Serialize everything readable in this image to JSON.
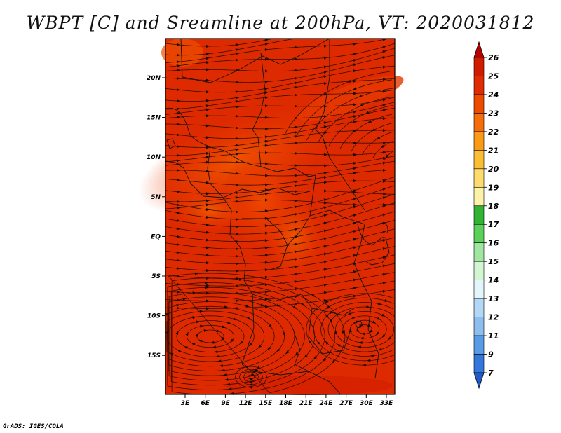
{
  "title": "WBPT [C] and Sreamline at 200hPa, VT: 2020031812",
  "credit": "GrADS: IGES/COLA",
  "map": {
    "lon_labels": [
      "3E",
      "6E",
      "9E",
      "12E",
      "15E",
      "18E",
      "21E",
      "24E",
      "27E",
      "30E",
      "33E"
    ],
    "lat_labels": [
      "20N",
      "15N",
      "10N",
      "5N",
      "EQ",
      "5S",
      "10S",
      "15S"
    ]
  },
  "legend": {
    "labels": [
      "26",
      "25",
      "24",
      "23",
      "22",
      "21",
      "20",
      "19",
      "18",
      "17",
      "16",
      "15",
      "14",
      "13",
      "12",
      "11",
      "9",
      "7"
    ],
    "colors": [
      "#b80000",
      "#d21c00",
      "#e02c00",
      "#ee4a00",
      "#f56e0a",
      "#fa9a16",
      "#fbbd32",
      "#fddb6c",
      "#fdf3a8",
      "#32b432",
      "#5ad25a",
      "#a0e6a0",
      "#d2f5d2",
      "#e4f5fb",
      "#b4d7f5",
      "#8cbef0",
      "#5a9be6",
      "#3278dc",
      "#1e5ac8"
    ]
  }
}
